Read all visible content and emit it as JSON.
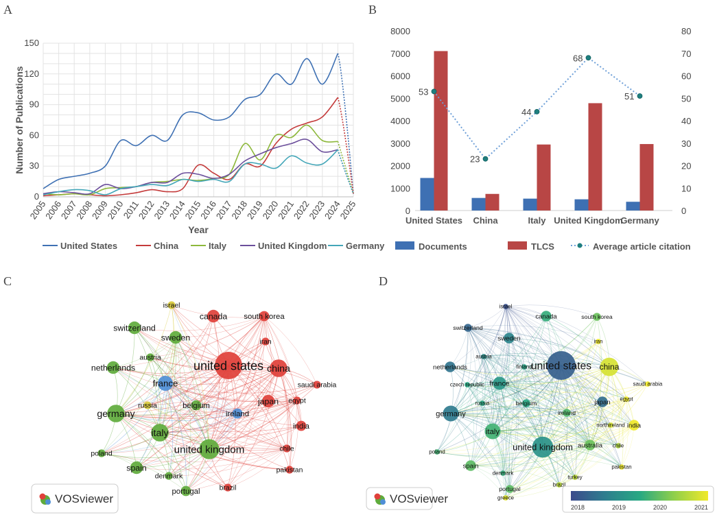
{
  "panels": {
    "a": "A",
    "b": "B",
    "c": "C",
    "d": "D"
  },
  "chart_data": [
    {
      "type": "line",
      "panel": "A",
      "xlabel": "Year",
      "ylabel": "Number of Publications",
      "ylim": [
        0,
        150
      ],
      "yticks": [
        0,
        30,
        60,
        90,
        120,
        150
      ],
      "x": [
        "2005",
        "2006",
        "2007",
        "2008",
        "2009",
        "2010",
        "2011",
        "2012",
        "2013",
        "2014",
        "2015",
        "2016",
        "2017",
        "2018",
        "2019",
        "2020",
        "2021",
        "2022",
        "2023",
        "2024",
        "2025"
      ],
      "projected_from": "2024",
      "series": [
        {
          "name": "United States",
          "color": "#3e70b3",
          "values": [
            8,
            17,
            20,
            23,
            30,
            55,
            50,
            60,
            55,
            80,
            82,
            75,
            78,
            95,
            100,
            120,
            110,
            135,
            110,
            140,
            3
          ]
        },
        {
          "name": "China",
          "color": "#c43b3b",
          "values": [
            1,
            2,
            3,
            2,
            1,
            2,
            4,
            7,
            5,
            8,
            31,
            23,
            17,
            32,
            30,
            52,
            66,
            72,
            78,
            97,
            3
          ]
        },
        {
          "name": "Italy",
          "color": "#8db83b",
          "values": [
            3,
            2,
            3,
            2,
            8,
            9,
            10,
            14,
            15,
            17,
            16,
            18,
            22,
            52,
            36,
            60,
            58,
            70,
            55,
            54,
            3
          ]
        },
        {
          "name": "United Kingdom",
          "color": "#6b4e9b",
          "values": [
            3,
            5,
            4,
            3,
            12,
            8,
            10,
            14,
            14,
            23,
            22,
            18,
            22,
            35,
            42,
            48,
            52,
            56,
            44,
            46,
            3
          ]
        },
        {
          "name": "Germany",
          "color": "#43a6b8",
          "values": [
            2,
            5,
            7,
            6,
            2,
            8,
            10,
            12,
            11,
            17,
            15,
            17,
            15,
            32,
            32,
            28,
            40,
            33,
            32,
            46,
            3
          ]
        }
      ]
    },
    {
      "type": "bar",
      "panel": "B",
      "categories": [
        "United States",
        "China",
        "Italy",
        "United Kingdom",
        "Germany"
      ],
      "ylim": [
        0,
        8000
      ],
      "yticks": [
        0,
        1000,
        2000,
        3000,
        4000,
        5000,
        6000,
        7000,
        8000
      ],
      "y2lim": [
        0,
        80
      ],
      "y2ticks": [
        0,
        10,
        20,
        30,
        40,
        50,
        60,
        70,
        80
      ],
      "series": [
        {
          "name": "Documents",
          "color": "#3e70b3",
          "axis": "left",
          "values": [
            1450,
            560,
            530,
            500,
            390
          ]
        },
        {
          "name": "TLCS",
          "color": "#b84645",
          "axis": "left",
          "values": [
            7100,
            740,
            2940,
            4780,
            2960
          ]
        },
        {
          "name": "Average article citation",
          "color": "#6fa0d8",
          "axis": "right",
          "line": true,
          "values": [
            53,
            23,
            44,
            68,
            51
          ],
          "data_labels": [
            "53",
            "23",
            "44",
            "68",
            "51"
          ]
        }
      ]
    },
    {
      "type": "network",
      "panel": "C",
      "logo_text": "VOSviewer",
      "clusters": {
        "red": "#e0403a",
        "green": "#5fab3c",
        "blue": "#4f8fd6",
        "yellow": "#d8c93a"
      },
      "nodes": [
        {
          "label": "united states",
          "cluster": "red",
          "weight": 10
        },
        {
          "label": "china",
          "cluster": "red",
          "weight": 6
        },
        {
          "label": "canada",
          "cluster": "red",
          "weight": 4
        },
        {
          "label": "south korea",
          "cluster": "red",
          "weight": 3
        },
        {
          "label": "iran",
          "cluster": "red",
          "weight": 2
        },
        {
          "label": "saudi arabia",
          "cluster": "red",
          "weight": 2
        },
        {
          "label": "egypt",
          "cluster": "red",
          "weight": 2
        },
        {
          "label": "japan",
          "cluster": "red",
          "weight": 4
        },
        {
          "label": "india",
          "cluster": "red",
          "weight": 3
        },
        {
          "label": "chile",
          "cluster": "red",
          "weight": 2
        },
        {
          "label": "pakistan",
          "cluster": "red",
          "weight": 2
        },
        {
          "label": "brazil",
          "cluster": "red",
          "weight": 2
        },
        {
          "label": "ireland",
          "cluster": "blue",
          "weight": 3
        },
        {
          "label": "israel",
          "cluster": "yellow",
          "weight": 2
        },
        {
          "label": "switzerland",
          "cluster": "green",
          "weight": 4
        },
        {
          "label": "sweden",
          "cluster": "green",
          "weight": 4
        },
        {
          "label": "austria",
          "cluster": "green",
          "weight": 2
        },
        {
          "label": "netherlands",
          "cluster": "green",
          "weight": 4
        },
        {
          "label": "france",
          "cluster": "blue",
          "weight": 5
        },
        {
          "label": "russia",
          "cluster": "yellow",
          "weight": 2
        },
        {
          "label": "belgium",
          "cluster": "green",
          "weight": 3
        },
        {
          "label": "germany",
          "cluster": "green",
          "weight": 6
        },
        {
          "label": "italy",
          "cluster": "green",
          "weight": 6
        },
        {
          "label": "united kingdom",
          "cluster": "green",
          "weight": 7
        },
        {
          "label": "poland",
          "cluster": "green",
          "weight": 2
        },
        {
          "label": "spain",
          "cluster": "green",
          "weight": 4
        },
        {
          "label": "denmark",
          "cluster": "green",
          "weight": 2
        },
        {
          "label": "portugal",
          "cluster": "green",
          "weight": 3
        }
      ]
    },
    {
      "type": "network",
      "panel": "D",
      "logo_text": "VOSviewer",
      "colorbar": {
        "ticks": [
          "2018",
          "2019",
          "2020",
          "2021"
        ],
        "colors": [
          "#3b4a8c",
          "#2e7e8e",
          "#27a883",
          "#8fcf4a",
          "#f0e92a"
        ]
      },
      "nodes": [
        {
          "label": "israel",
          "year": 2018.1,
          "weight": 1
        },
        {
          "label": "canada",
          "year": 2019.6,
          "weight": 3
        },
        {
          "label": "south korea",
          "year": 2020.0,
          "weight": 2
        },
        {
          "label": "switzerland",
          "year": 2018.4,
          "weight": 2
        },
        {
          "label": "iran",
          "year": 2021.0,
          "weight": 1
        },
        {
          "label": "sweden",
          "year": 2018.9,
          "weight": 3
        },
        {
          "label": "austria",
          "year": 2019.0,
          "weight": 1
        },
        {
          "label": "finland",
          "year": 2019.4,
          "weight": 1
        },
        {
          "label": "united states",
          "year": 2018.3,
          "weight": 10
        },
        {
          "label": "china",
          "year": 2020.8,
          "weight": 6
        },
        {
          "label": "netherlands",
          "year": 2018.6,
          "weight": 3
        },
        {
          "label": "saudi arabia",
          "year": 2021.0,
          "weight": 1
        },
        {
          "label": "czech republic",
          "year": 2019.5,
          "weight": 1
        },
        {
          "label": "france",
          "year": 2019.2,
          "weight": 4
        },
        {
          "label": "japan",
          "year": 2018.5,
          "weight": 3
        },
        {
          "label": "egypt",
          "year": 2021.0,
          "weight": 1
        },
        {
          "label": "russia",
          "year": 2019.5,
          "weight": 1
        },
        {
          "label": "belgium",
          "year": 2019.5,
          "weight": 2
        },
        {
          "label": "germany",
          "year": 2018.7,
          "weight": 5
        },
        {
          "label": "ireland",
          "year": 2019.8,
          "weight": 2
        },
        {
          "label": "northireland",
          "year": 2020.8,
          "weight": 1
        },
        {
          "label": "india",
          "year": 2021.0,
          "weight": 3
        },
        {
          "label": "italy",
          "year": 2019.7,
          "weight": 5
        },
        {
          "label": "australia",
          "year": 2020.0,
          "weight": 3
        },
        {
          "label": "united kingdom",
          "year": 2019.1,
          "weight": 7
        },
        {
          "label": "chile",
          "year": 2020.5,
          "weight": 1
        },
        {
          "label": "poland",
          "year": 2019.7,
          "weight": 1
        },
        {
          "label": "spain",
          "year": 2019.9,
          "weight": 3
        },
        {
          "label": "pakistan",
          "year": 2021.0,
          "weight": 1
        },
        {
          "label": "denmark",
          "year": 2019.6,
          "weight": 1
        },
        {
          "label": "turkey",
          "year": 2020.6,
          "weight": 1
        },
        {
          "label": "brazil",
          "year": 2020.6,
          "weight": 1
        },
        {
          "label": "portugal",
          "year": 2019.9,
          "weight": 2
        },
        {
          "label": "greece",
          "year": 2020.9,
          "weight": 1
        }
      ]
    }
  ]
}
